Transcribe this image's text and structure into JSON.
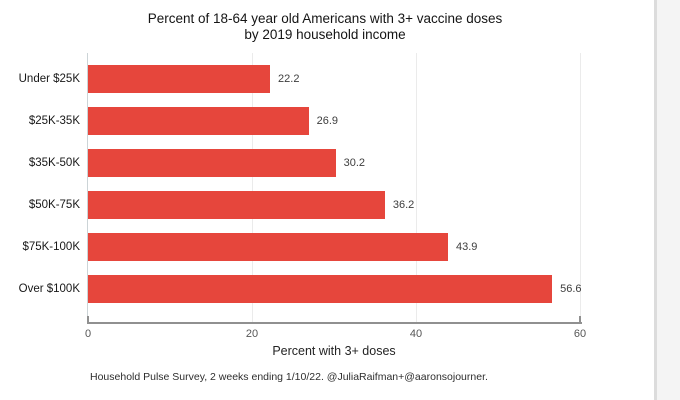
{
  "chart_data": {
    "type": "bar",
    "orientation": "horizontal",
    "title_line1": "Percent of 18-64 year old Americans with 3+ vaccine doses",
    "title_line2": "by 2019 household income",
    "categories": [
      "Under $25K",
      "$25K-35K",
      "$35K-50K",
      "$50K-75K",
      "$75K-100K",
      "Over $100K"
    ],
    "values": [
      22.2,
      26.9,
      30.2,
      36.2,
      43.9,
      56.6
    ],
    "value_labels": [
      "22.2",
      "26.9",
      "30.2",
      "36.2",
      "43.9",
      "56.6"
    ],
    "xlabel": "Percent with 3+ doses",
    "x_ticks": [
      0,
      20,
      40,
      60
    ],
    "xlim": [
      0,
      60
    ],
    "grid": "faint vertical gridlines at 20, 40, 60",
    "legend": "none",
    "bar_color": "#e6463c",
    "source_note": "Household Pulse Survey, 2 weeks ending 1/10/22. @JuliaRaifman+@aaronsojourner."
  }
}
